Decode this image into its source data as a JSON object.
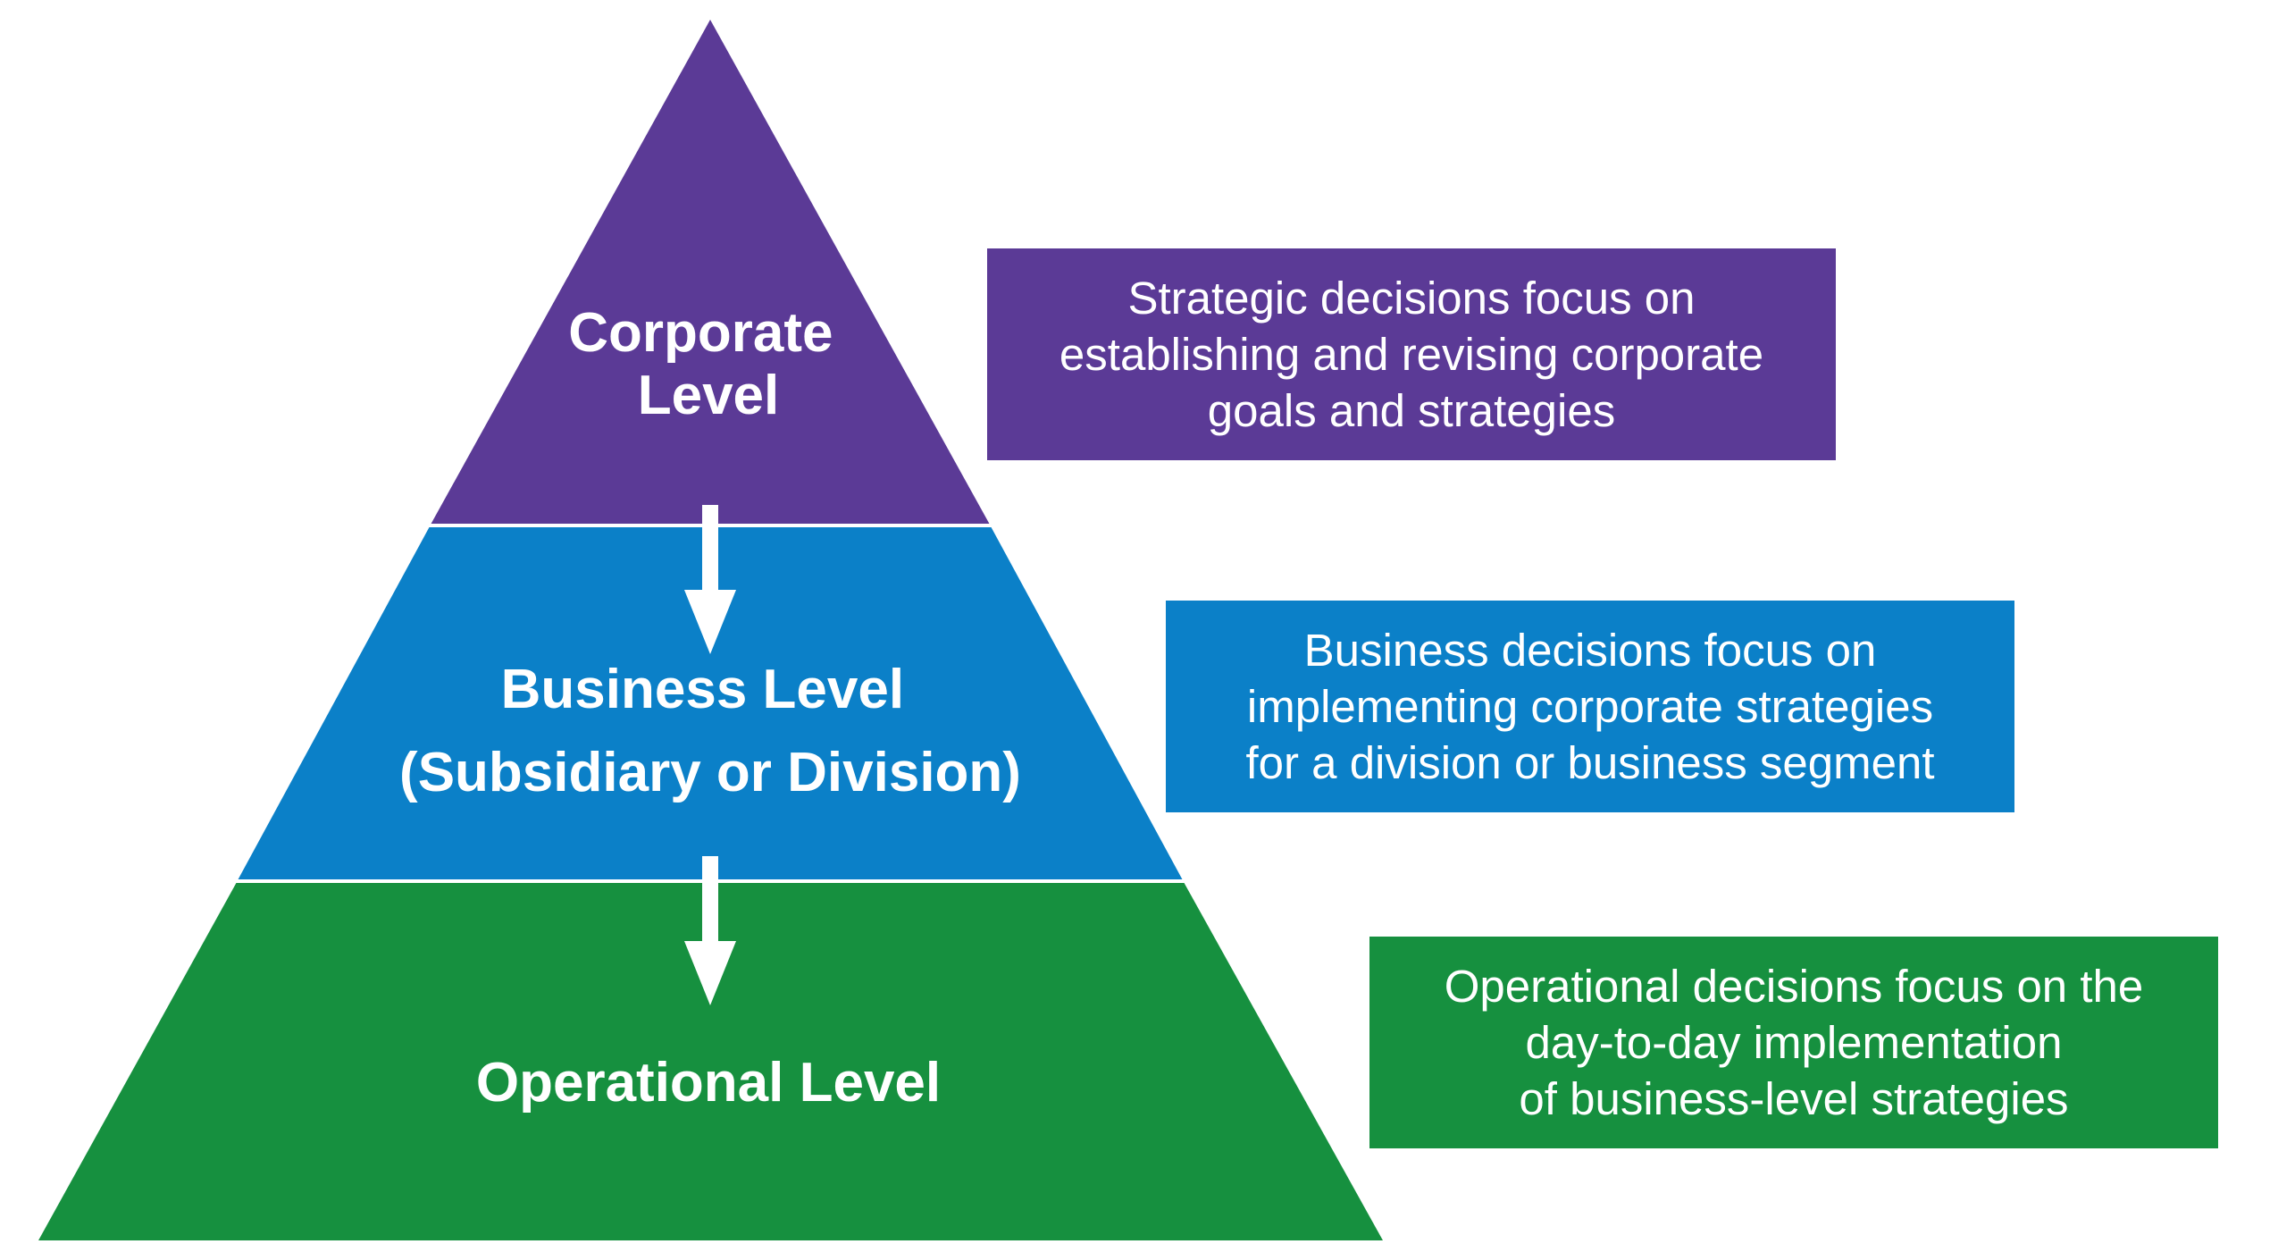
{
  "colors": {
    "corporate": "#5b3a96",
    "business": "#0b80c8",
    "operational": "#16903f",
    "divider": "#ffffff",
    "arrow": "#ffffff"
  },
  "pyramid": {
    "tiers": [
      {
        "id": "corporate",
        "label_lines": [
          "Corporate",
          "Level"
        ]
      },
      {
        "id": "business",
        "label_lines": [
          "Business Level",
          "(Subsidiary or Division)"
        ]
      },
      {
        "id": "operational",
        "label_lines": [
          "Operational Level"
        ]
      }
    ],
    "arrows": [
      {
        "from": "corporate",
        "to": "business"
      },
      {
        "from": "business",
        "to": "operational"
      }
    ]
  },
  "descriptions": [
    {
      "id": "corporate",
      "lines": [
        "Strategic decisions focus on",
        "establishing and revising corporate",
        "goals and strategies"
      ]
    },
    {
      "id": "business",
      "lines": [
        "Business decisions focus on",
        "implementing corporate strategies",
        "for a division or business segment"
      ]
    },
    {
      "id": "operational",
      "lines": [
        "Operational decisions focus on the",
        "day-to-day implementation",
        "of business-level strategies"
      ]
    }
  ]
}
